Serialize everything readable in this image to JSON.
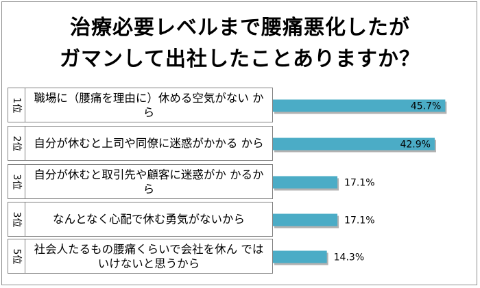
{
  "chart_data": {
    "type": "bar",
    "orientation": "horizontal",
    "title_lines": [
      "治療必要レベルまで腰痛悪化したが",
      "ガマンして出社したことありますか？"
    ],
    "ranks": [
      "1位",
      "2位",
      "3位",
      "3位",
      "5位"
    ],
    "categories": [
      "職場に（腰痛を理由に）休める空気がない から",
      "自分が休むと上司や同僚に迷惑がかかる から",
      "自分が休むと取引先や顧客に迷惑がか かるから",
      "なんとなく心配で休む勇気がないから",
      "社会人たるもの腰痛くらいで会社を休ん ではいけないと思うから"
    ],
    "values": [
      45.7,
      42.9,
      17.1,
      17.1,
      14.3
    ],
    "value_labels": [
      "45.7%",
      "42.9%",
      "17.1%",
      "17.1%",
      "14.3%"
    ],
    "unit": "%",
    "bar_color": "#4bacc6",
    "bar_shadow_color": "#7f7f7f"
  }
}
